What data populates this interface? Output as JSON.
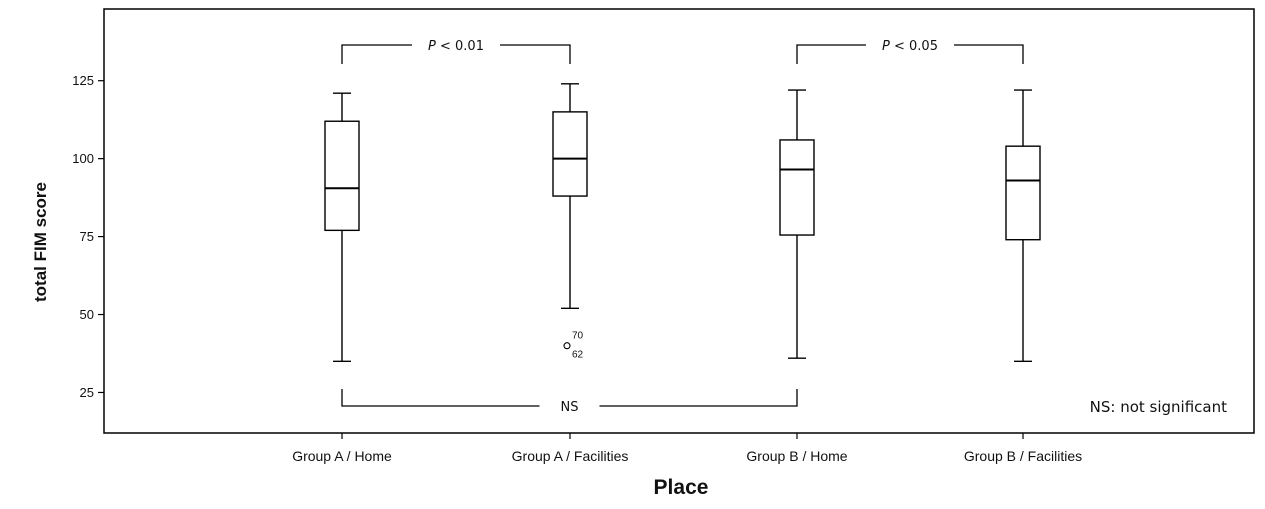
{
  "chart_data": {
    "type": "box",
    "xlabel": "Place",
    "ylabel": "total FIM score",
    "ylim": [
      12,
      148
    ],
    "yticks": [
      25,
      50,
      75,
      100,
      125
    ],
    "categories": [
      "Group A / Home",
      "Group A / Facilities",
      "Group B / Home",
      "Group B / Facilities"
    ],
    "boxes": [
      {
        "category": "Group A / Home",
        "min": 35,
        "q1": 77,
        "median": 90.5,
        "q3": 112,
        "max": 121,
        "outliers": []
      },
      {
        "category": "Group A / Facilities",
        "min": 52,
        "q1": 88,
        "median": 100,
        "q3": 115,
        "max": 124,
        "outliers": [
          {
            "value": 40,
            "labels": [
              "70",
              "62"
            ]
          }
        ]
      },
      {
        "category": "Group B / Home",
        "min": 36,
        "q1": 75.5,
        "median": 96.5,
        "q3": 106,
        "max": 122,
        "outliers": []
      },
      {
        "category": "Group B / Facilities",
        "min": 35,
        "q1": 74,
        "median": 93,
        "q3": 104,
        "max": 122,
        "outliers": []
      }
    ],
    "comparisons": [
      {
        "from": 0,
        "to": 1,
        "label": "P < 0.01",
        "position": "top"
      },
      {
        "from": 2,
        "to": 3,
        "label": "P < 0.05",
        "position": "top"
      },
      {
        "from": 0,
        "to": 2,
        "label": "NS",
        "position": "bottom"
      }
    ],
    "annotation": "NS: not significant",
    "grid": false,
    "legend": "none"
  }
}
